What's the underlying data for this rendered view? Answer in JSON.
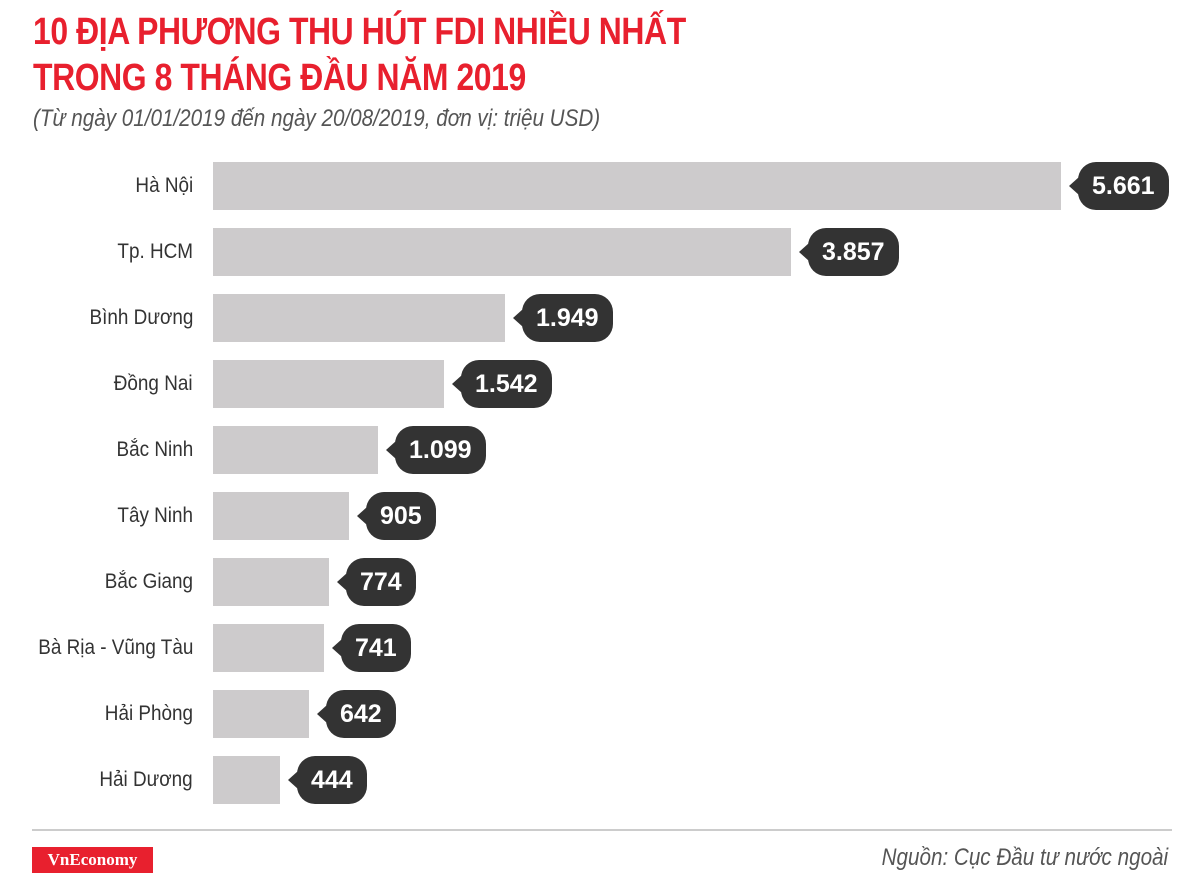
{
  "header": {
    "title_line1": "10 ĐỊA PHƯƠNG THU HÚT FDI NHIỀU NHẤT",
    "title_line2": "TRONG 8 THÁNG ĐẦU NĂM 2019",
    "subtitle": "(Từ ngày 01/01/2019 đến ngày 20/08/2019, đơn vị: triệu USD)"
  },
  "footer": {
    "logo": "VnEconomy",
    "source": "Nguồn: Cục Đầu tư nước ngoài"
  },
  "colors": {
    "title": "#e8202e",
    "bar": "#cdcbcc",
    "label_bubble": "#333333",
    "logo_bg": "#e8202e"
  },
  "chart_data": {
    "type": "bar",
    "orientation": "horizontal",
    "title": "10 ĐỊA PHƯƠNG THU HÚT FDI NHIỀU NHẤT TRONG 8 THÁNG ĐẦU NĂM 2019",
    "subtitle": "(Từ ngày 01/01/2019 đến ngày 20/08/2019, đơn vị: triệu USD)",
    "xlabel": "",
    "ylabel": "",
    "unit": "triệu USD",
    "grid": false,
    "legend": null,
    "categories": [
      "Hà Nội",
      "Tp. HCM",
      "Bình Dương",
      "Đồng Nai",
      "Bắc Ninh",
      "Tây Ninh",
      "Bắc Giang",
      "Bà Rịa - Vũng Tàu",
      "Hải Phòng",
      "Hải Dương"
    ],
    "values": [
      5661,
      3857,
      1949,
      1542,
      1099,
      905,
      774,
      741,
      642,
      444
    ],
    "value_labels": [
      "5.661",
      "3.857",
      "1.949",
      "1.542",
      "1.099",
      "905",
      "774",
      "741",
      "642",
      "444"
    ],
    "source": "Nguồn: Cục Đầu tư nước ngoài"
  }
}
